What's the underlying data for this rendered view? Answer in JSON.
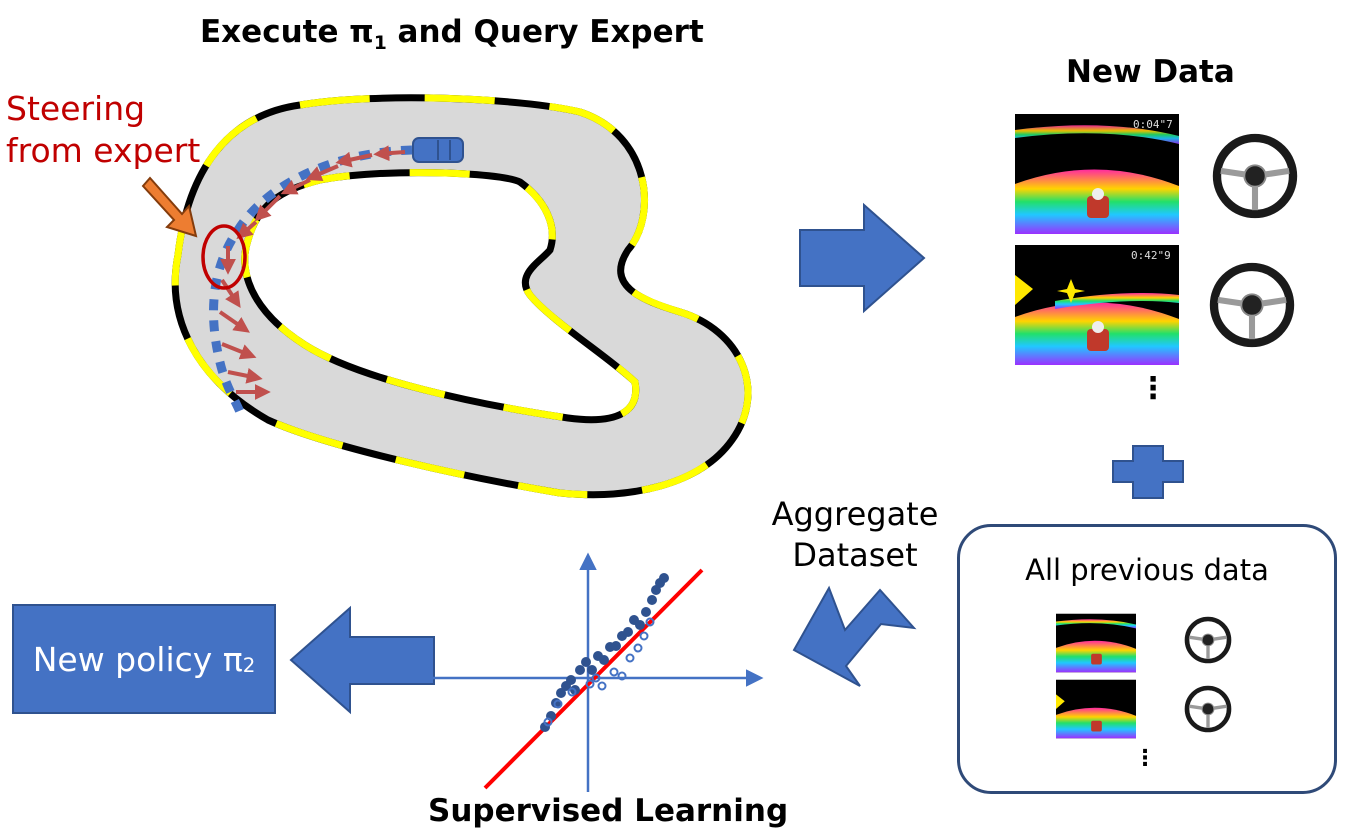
{
  "labels": {
    "execute_title_pre": "Execute ",
    "execute_title_pi": "π",
    "execute_title_sub": "1",
    "execute_title_post": " and Query Expert",
    "steering_line1": "Steering",
    "steering_line2": "from expert",
    "new_data_title": "New Data",
    "aggregate_line1": "Aggregate",
    "aggregate_line2": "Dataset",
    "all_previous": "All previous data",
    "new_policy_pre": "New policy ",
    "new_policy_pi": "π",
    "new_policy_sub": "2",
    "supervised_title": "Supervised Learning",
    "ellipsis": "⋮"
  },
  "colors": {
    "arrow_blue": "#4472c4",
    "expert_red": "#c00000",
    "track_yellow": "#ffff00",
    "track_gray": "#d9d9d9",
    "fit_line": "#ff0000"
  },
  "icons": [
    "steering-wheel-icon",
    "game-frame-icon",
    "car-icon",
    "plus-icon",
    "arrow-right-icon",
    "arrow-left-icon"
  ]
}
